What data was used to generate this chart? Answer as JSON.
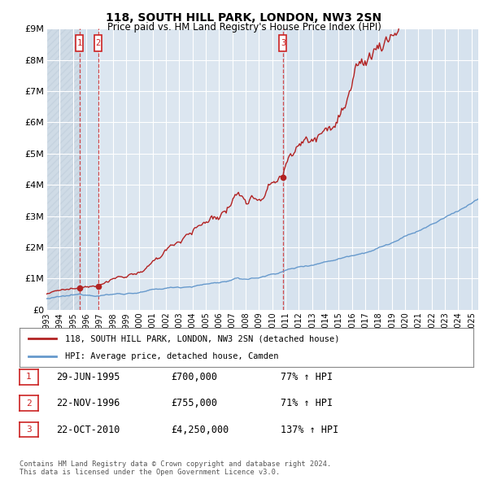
{
  "title": "118, SOUTH HILL PARK, LONDON, NW3 2SN",
  "subtitle": "Price paid vs. HM Land Registry's House Price Index (HPI)",
  "background_color": "#e8eef7",
  "plot_bg_color": "#dce6f0",
  "grid_color": "#ffffff",
  "red_line_color": "#b22222",
  "blue_line_color": "#6699cc",
  "sale1_date": 1995.49,
  "sale2_date": 1996.89,
  "sale3_date": 2010.81,
  "sale1_price": 700000,
  "sale2_price": 755000,
  "sale3_price": 4250000,
  "ylim": [
    0,
    9000000
  ],
  "xlim": [
    1993.0,
    2025.5
  ],
  "yticks": [
    0,
    1000000,
    2000000,
    3000000,
    4000000,
    5000000,
    6000000,
    7000000,
    8000000,
    9000000
  ],
  "ytick_labels": [
    "£0",
    "£1M",
    "£2M",
    "£3M",
    "£4M",
    "£5M",
    "£6M",
    "£7M",
    "£8M",
    "£9M"
  ],
  "xticks": [
    1993,
    1994,
    1995,
    1996,
    1997,
    1998,
    1999,
    2000,
    2001,
    2002,
    2003,
    2004,
    2005,
    2006,
    2007,
    2008,
    2009,
    2010,
    2011,
    2012,
    2013,
    2014,
    2015,
    2016,
    2017,
    2018,
    2019,
    2020,
    2021,
    2022,
    2023,
    2024,
    2025
  ],
  "legend_label_red": "118, SOUTH HILL PARK, LONDON, NW3 2SN (detached house)",
  "legend_label_blue": "HPI: Average price, detached house, Camden",
  "table_rows": [
    {
      "num": "1",
      "date": "29-JUN-1995",
      "price": "£700,000",
      "pct": "77% ↑ HPI"
    },
    {
      "num": "2",
      "date": "22-NOV-1996",
      "price": "£755,000",
      "pct": "71% ↑ HPI"
    },
    {
      "num": "3",
      "date": "22-OCT-2010",
      "price": "£4,250,000",
      "pct": "137% ↑ HPI"
    }
  ],
  "footnote": "Contains HM Land Registry data © Crown copyright and database right 2024.\nThis data is licensed under the Open Government Licence v3.0."
}
